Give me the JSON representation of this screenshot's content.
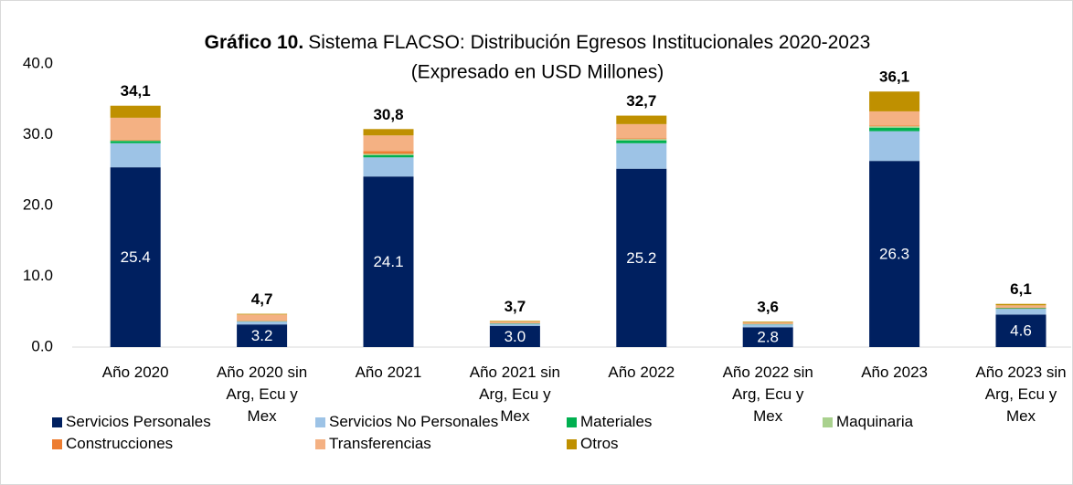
{
  "chart_data": {
    "type": "stacked_bar",
    "title_label": "Gráfico 10.",
    "title": "Sistema FLACSO: Distribución Egresos Institucionales 2020-2023",
    "subtitle": "(Expresado en USD Millones)",
    "categories": [
      "Año 2020",
      "Año 2020 sin Arg, Ecu y Mex",
      "Año 2021",
      "Año 2021 sin Arg, Ecu y Mex",
      "Año 2022",
      "Año 2022 sin Arg, Ecu y Mex",
      "Año 2023",
      "Año 2023 sin Arg, Ecu y Mex"
    ],
    "series": [
      {
        "name": "Servicios Personales",
        "color": "#002060",
        "values": [
          25.4,
          3.2,
          24.1,
          3.0,
          25.2,
          2.8,
          26.3,
          4.6
        ],
        "value_labels": [
          "25.4",
          "3.2",
          "24.1",
          "3.0",
          "25.2",
          "2.8",
          "26.3",
          "4.6"
        ]
      },
      {
        "name": "Servicios No Personales",
        "color": "#9dc3e6",
        "values": [
          3.4,
          0.4,
          2.7,
          0.3,
          3.6,
          0.4,
          4.2,
          0.8
        ]
      },
      {
        "name": "Materiales",
        "color": "#00b050",
        "values": [
          0.3,
          0.05,
          0.3,
          0.05,
          0.4,
          0.05,
          0.5,
          0.1
        ]
      },
      {
        "name": "Maquinaria",
        "color": "#a9d18e",
        "values": [
          0.1,
          0,
          0.2,
          0,
          0.2,
          0,
          0.2,
          0
        ]
      },
      {
        "name": "Construcciones",
        "color": "#ed7d31",
        "values": [
          0.1,
          0.05,
          0.4,
          0.05,
          0.1,
          0.05,
          0.1,
          0.05
        ]
      },
      {
        "name": "Transferencias",
        "color": "#f4b183",
        "values": [
          3.1,
          0.9,
          2.2,
          0.2,
          2.0,
          0.2,
          2.0,
          0.35
        ]
      },
      {
        "name": "Otros",
        "color": "#bf9000",
        "values": [
          1.7,
          0.1,
          0.9,
          0.1,
          1.2,
          0.1,
          2.8,
          0.2
        ]
      }
    ],
    "totals": [
      34.1,
      4.7,
      30.8,
      3.7,
      32.7,
      3.6,
      36.1,
      6.1
    ],
    "total_labels": [
      "34,1",
      "4,7",
      "30,8",
      "3,7",
      "32,7",
      "3,6",
      "36,1",
      "6,1"
    ],
    "ylim": [
      0,
      40
    ],
    "yticks": [
      {
        "value": 0,
        "label": "0.0"
      },
      {
        "value": 10,
        "label": "10.0"
      },
      {
        "value": 20,
        "label": "20.0"
      },
      {
        "value": 30,
        "label": "30.0"
      },
      {
        "value": 40,
        "label": "40.0"
      }
    ],
    "legend": "bottom"
  }
}
